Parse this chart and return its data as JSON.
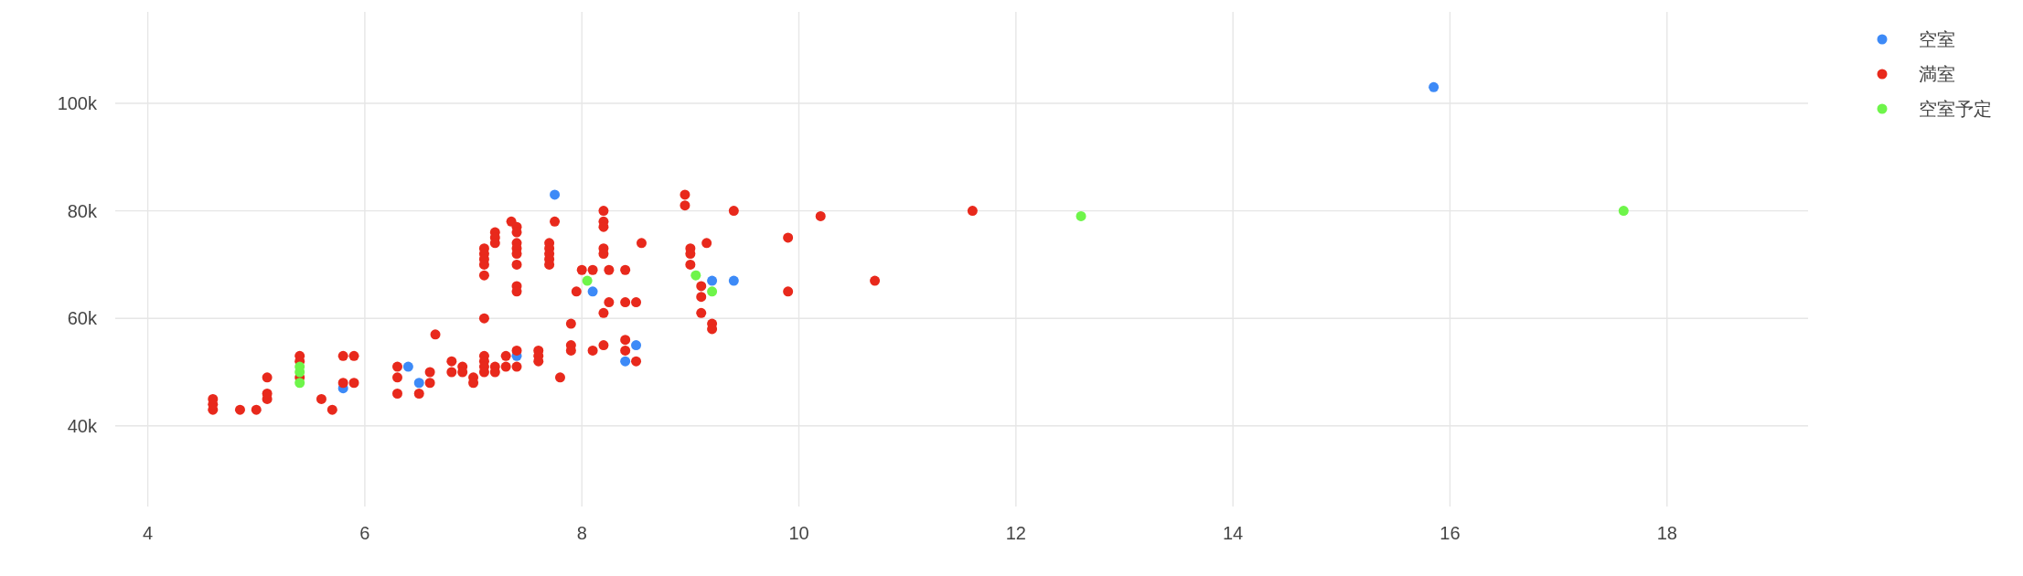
{
  "chart_data": {
    "type": "scatter",
    "marker": "circle",
    "grid": true,
    "legend": "top right",
    "xlim": [
      3.7,
      19.3
    ],
    "xticks": [
      4,
      6,
      8,
      10,
      12,
      14,
      16,
      18
    ],
    "ylim": [
      25000,
      117000
    ],
    "yticks": [
      {
        "value": 40000,
        "label": "40k"
      },
      {
        "value": 60000,
        "label": "60k"
      },
      {
        "value": 80000,
        "label": "80k"
      },
      {
        "value": 100000,
        "label": "100k"
      }
    ],
    "series": [
      {
        "name": "空室",
        "color": "#3d8af7",
        "x": [
          15.85,
          7.75,
          8.1,
          9.2,
          9.4,
          8.5,
          8.4,
          6.4,
          6.5,
          5.8,
          7.4
        ],
        "values": [
          103000,
          83000,
          65000,
          67000,
          67000,
          55000,
          52000,
          51000,
          48000,
          47000,
          53000
        ]
      },
      {
        "name": "満室",
        "color": "#e8291c",
        "x": [
          4.6,
          4.6,
          4.6,
          4.85,
          5.0,
          5.1,
          5.1,
          5.1,
          5.4,
          5.4,
          5.4,
          5.6,
          5.7,
          5.8,
          5.8,
          5.9,
          5.9,
          6.3,
          6.3,
          6.3,
          6.5,
          6.6,
          6.6,
          6.65,
          6.8,
          6.8,
          6.9,
          6.9,
          7.0,
          7.0,
          7.1,
          7.1,
          7.1,
          7.1,
          7.1,
          7.1,
          7.1,
          7.1,
          7.1,
          7.1,
          7.2,
          7.2,
          7.2,
          7.2,
          7.2,
          7.3,
          7.3,
          7.35,
          7.4,
          7.4,
          7.4,
          7.4,
          7.4,
          7.4,
          7.4,
          7.4,
          7.4,
          7.4,
          7.6,
          7.6,
          7.6,
          7.7,
          7.7,
          7.7,
          7.7,
          7.7,
          7.75,
          7.8,
          7.9,
          7.9,
          7.9,
          7.95,
          8.0,
          8.1,
          8.1,
          8.2,
          8.2,
          8.2,
          8.2,
          8.2,
          8.2,
          8.2,
          8.25,
          8.25,
          8.4,
          8.4,
          8.4,
          8.4,
          8.5,
          8.5,
          8.55,
          8.95,
          8.95,
          9.0,
          9.0,
          9.0,
          9.1,
          9.1,
          9.1,
          9.15,
          9.2,
          9.2,
          9.4,
          9.9,
          9.9,
          10.2,
          10.7,
          11.6
        ],
        "values": [
          43000,
          44000,
          45000,
          43000,
          43000,
          45000,
          46000,
          49000,
          53000,
          52000,
          49000,
          45000,
          43000,
          53000,
          48000,
          53000,
          48000,
          51000,
          49000,
          46000,
          46000,
          50000,
          48000,
          57000,
          52000,
          50000,
          51000,
          50000,
          49000,
          48000,
          73000,
          72000,
          71000,
          70000,
          68000,
          60000,
          53000,
          52000,
          51000,
          50000,
          76000,
          75000,
          74000,
          51000,
          50000,
          53000,
          51000,
          78000,
          77000,
          76000,
          74000,
          73000,
          72000,
          70000,
          66000,
          65000,
          54000,
          51000,
          54000,
          53000,
          52000,
          74000,
          73000,
          72000,
          71000,
          70000,
          78000,
          49000,
          59000,
          55000,
          54000,
          65000,
          69000,
          69000,
          54000,
          80000,
          78000,
          77000,
          73000,
          72000,
          61000,
          55000,
          69000,
          63000,
          69000,
          63000,
          56000,
          54000,
          63000,
          52000,
          74000,
          83000,
          81000,
          73000,
          72000,
          70000,
          66000,
          64000,
          61000,
          74000,
          59000,
          58000,
          80000,
          75000,
          65000,
          79000,
          67000,
          80000
        ]
      },
      {
        "name": "空室予定",
        "color": "#6ef54a",
        "x": [
          17.6,
          12.6,
          8.05,
          9.05,
          9.2,
          5.4,
          5.4,
          5.4
        ],
        "values": [
          80000,
          79000,
          67000,
          68000,
          65000,
          48000,
          50000,
          51000
        ]
      }
    ]
  }
}
